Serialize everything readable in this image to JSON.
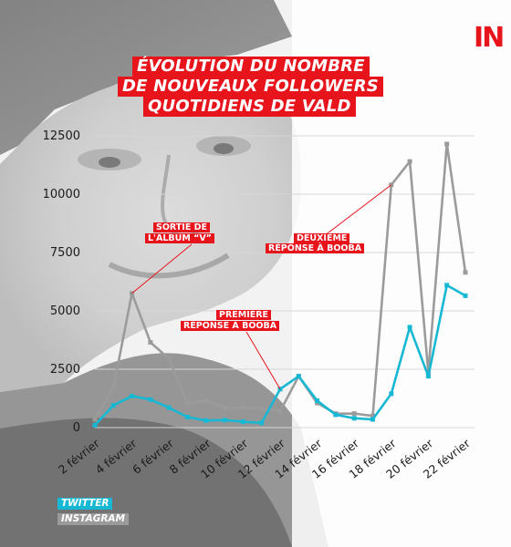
{
  "brand": {
    "logo_text": "IN",
    "accent_color": "#e8141c"
  },
  "title_lines": [
    "ÉVOLUTION DU NOMBRE",
    "DE NOUVEAUX FOLLOWERS",
    "QUOTIDIENS DE VALD"
  ],
  "annotations": [
    {
      "lines": [
        "SORTIE DE",
        "L'ALBUM “V”"
      ]
    },
    {
      "lines": [
        "PREMIÈRE",
        "RÉPONSE À BOOBA"
      ]
    },
    {
      "lines": [
        "DEUXIÈME",
        "RÉPONSE À BOOBA"
      ]
    }
  ],
  "legend": [
    {
      "label": "TWITTER",
      "color": "#17b8d4"
    },
    {
      "label": "INSTAGRAM",
      "color": "#9b9b9b"
    }
  ],
  "chart_data": {
    "type": "line",
    "title": "ÉVOLUTION DU NOMBRE DE NOUVEAUX FOLLOWERS QUOTIDIENS DE VALD",
    "x": [
      "2 février",
      "3 février",
      "4 février",
      "5 février",
      "6 février",
      "7 février",
      "8 février",
      "9 février",
      "10 février",
      "11 février",
      "12 février",
      "13 février",
      "14 février",
      "15 février",
      "16 février",
      "17 février",
      "18 février",
      "19 février",
      "20 février",
      "21 février",
      "22 février"
    ],
    "x_tick_labels": [
      "2 février",
      "4 février",
      "6 février",
      "8 février",
      "10 février",
      "12 février",
      "14 février",
      "16 février",
      "18 février",
      "20 février",
      "22 février"
    ],
    "y_ticks": [
      0,
      2500,
      5000,
      7500,
      10000,
      12500
    ],
    "y_tick_labels": [
      "0",
      "2500",
      "5000",
      "7500",
      "10000",
      "12500"
    ],
    "ylim": [
      0,
      12500
    ],
    "grid": "horizontal",
    "series": [
      {
        "name": "TWITTER",
        "color": "#17b8d4",
        "values": [
          100,
          950,
          1350,
          1200,
          850,
          450,
          300,
          320,
          250,
          200,
          1650,
          2200,
          1150,
          550,
          400,
          350,
          1450,
          4300,
          2200,
          6100,
          5650
        ]
      },
      {
        "name": "INSTAGRAM",
        "color": "#9b9b9b",
        "values": [
          350,
          1700,
          5750,
          3650,
          2950,
          1050,
          1150,
          850,
          850,
          800,
          700,
          2200,
          1050,
          600,
          600,
          500,
          10400,
          11400,
          2350,
          12150,
          6650
        ]
      }
    ]
  }
}
